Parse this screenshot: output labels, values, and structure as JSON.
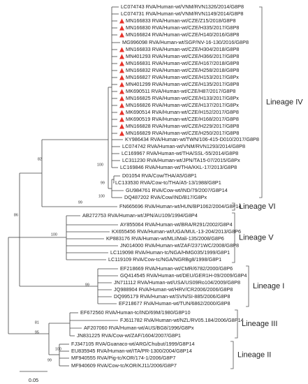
{
  "leaves": [
    {
      "label": "LC074743 RVA/Human-wt/VNM/RVN1326/2014/G8P8",
      "marker": false
    },
    {
      "label": "LC074731 RVA/Human-wt/VNM/RVN1149/2014/G8P8",
      "marker": false
    },
    {
      "label": "MN166833 RVA/Human-wt/CZE/Z15/2018/G8P8",
      "marker": true
    },
    {
      "label": "MN166830 RVA/Human-wt/CZE/H335/2017/G8P8",
      "marker": true
    },
    {
      "label": "MN166824 RVA/Human-wt/CZE/H140/2016/G8P8",
      "marker": true
    },
    {
      "label": "MG996098 RVA/Human-wt/SGP/NV-16-130/2016/G8P8",
      "marker": false
    },
    {
      "label": "MN166833 RVA/Human-wt/CZE/H304/2018/G8P8",
      "marker": true
    },
    {
      "label": "MN401293 RVA/Human-wt/CZE/H366/2017/G8P8",
      "marker": true
    },
    {
      "label": "MN166831 RVA/Human-wt/CZE/H167/2018/G8P8",
      "marker": true
    },
    {
      "label": "MN166832 RVA/Human-wt/CZE/H258/2018/G8P8",
      "marker": true
    },
    {
      "label": "MN166827 RVA/Human-wt/CZE/H153/2017/G8Px",
      "marker": true
    },
    {
      "label": "MN401299 RVA/Human-wt/CZE/H135/2017/G8P8",
      "marker": true
    },
    {
      "label": "MK690511 RVA/Human-wt/CZE/H87/2017/G8P8",
      "marker": true
    },
    {
      "label": "MN166825 RVA/Human-wt/CZE/H133/2017/G8Px",
      "marker": true
    },
    {
      "label": "MN166826 RVA/Human-wt/CZE/H137/2017/G8Px",
      "marker": true
    },
    {
      "label": "MK690514 RVA/Human-wt/CZE/H152/2017/G8P8",
      "marker": true
    },
    {
      "label": "MK690519 RVA/Human-wt/CZE/H168/2017/G8P8",
      "marker": true
    },
    {
      "label": "MN166828 RVA/Human-wt/CZE/H229/2017/G8P8",
      "marker": true
    },
    {
      "label": "MN166829 RVA/Human-wt/CZE/H250/2017/G8P8",
      "marker": true
    },
    {
      "label": "KY986434 RVA/Human-wt/TWN/106-415-D010/2017/G8P8",
      "marker": false
    },
    {
      "label": "LC074742 RVA/Human-wt/VNM/RVN1293/2014/G8P8",
      "marker": false
    },
    {
      "label": "LC169967 RVA/Human-wt/THA/SSL-55/2014/G8P8",
      "marker": false
    },
    {
      "label": "LC311230 RVA/Human-wt/JPN/TA15-07/2015/G8Px",
      "marker": false
    },
    {
      "label": "LC169846 RVA/Human-wt/THA/KKL-17/2013/G8P8",
      "marker": false
    },
    {
      "label": "D01054 RVA/Cow/THA/A5/G8P1",
      "marker": false
    },
    {
      "label": "LC133530 RVA/Cow-tc/THA/A5-13/1988/G8P1",
      "marker": false
    },
    {
      "label": "GU984761 RVA/Cow-wt/IND/79/2007/G8P14",
      "marker": false
    },
    {
      "label": "DQ487202 RVA/Cow/IND/B17/G8Px",
      "marker": false
    },
    {
      "label": "FN665696 RVA/Human-wt/HUN/BP1062/2004/G8P14",
      "marker": false
    },
    {
      "label": "AB272753 RVA/Human-wt/JPN/AU109/1994/G8P4",
      "marker": false
    },
    {
      "label": "AY855064 RVA/Human-wt/BRA/R291/2002/G8P4",
      "marker": false
    },
    {
      "label": "KX655456 RVA/Human-wt/UGA/MUL-13-204/2013/G8P6",
      "marker": false
    },
    {
      "label": "KP883176 RVA/Human-wt/MLI/Mali-135/2008/G8P6",
      "marker": false
    },
    {
      "label": "JN014000 RVA/Human-wt/ZAF/2371WC/2008/G8P8",
      "marker": false
    },
    {
      "label": "LC119098 RVA/Human-tc/NGA/HMG035/1999/G8P1",
      "marker": false
    },
    {
      "label": "LC119109 RVA/Cow-tc/NGA/NGRBg8/1998/G8P1",
      "marker": false
    },
    {
      "label": "EF218669 RVA/Human-wt/CMR/6782/2000/G8P6",
      "marker": false
    },
    {
      "label": "GQ414545 RVA/Human-wt/DEU/GER1H-09/2009/G8P4",
      "marker": false
    },
    {
      "label": "JN711112 RVA/Human-wt/USA/US09Ro104/2009/G8P8",
      "marker": false
    },
    {
      "label": "JQ988904 RVA/Human-wt/HRV/CR2006/2006/G8P8",
      "marker": false
    },
    {
      "label": "DQ995179 RVA/Human-wt/SVN/SI-885/2006/G8P8",
      "marker": false
    },
    {
      "label": "EF218677 RVA/Human-wt/TUN/6862/2000/G8P8",
      "marker": false
    },
    {
      "label": "EF672560 RVA/Human-tc/IND/69M/1980/G8P10",
      "marker": false
    },
    {
      "label": "FJ611782 RVA/Human-wt/NZL/RV05.184/2006/G8P14",
      "marker": false
    },
    {
      "label": "AF207060 RVA/Human-wt/AUS/BG8/1996/G8Px",
      "marker": false
    },
    {
      "label": "JN831225 RVA/Cow-wt/ZAF/1604/2007/G8P1",
      "marker": false
    },
    {
      "label": "FJ347105 RVA/Guanaco-wt/ARG/Chubut/1999/G8P14",
      "marker": false
    },
    {
      "label": "EU835945 RVA/Human-wt/ITA/PR-1300/2004/G8P14",
      "marker": false
    },
    {
      "label": "MF940555 RVA/Pig-tc/KOR/174-1/2006/G8P7",
      "marker": false
    },
    {
      "label": "MF940609 RVA/Cow-tc/KOR/KJ11/2006/G8P7",
      "marker": false
    }
  ],
  "lineages": [
    "Lineage IV",
    "Lineage VI",
    "Lineage V",
    "Lineage I",
    "Lineage III",
    "Lineage II"
  ],
  "support_values": [
    100,
    99,
    100,
    99,
    82,
    86,
    100,
    99,
    95,
    81,
    100,
    99
  ],
  "scale_bar": 0.05,
  "marker_color": "#e8332a"
}
